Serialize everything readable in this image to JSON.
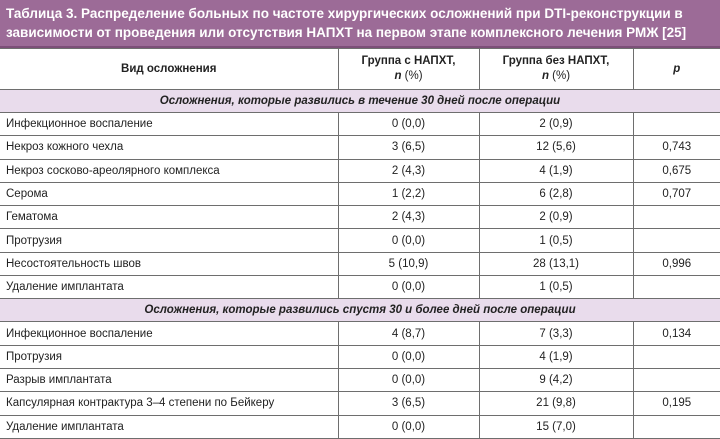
{
  "title": "Таблица 3. Распределение больных по частоте хирургических осложнений при DTI-реконструкции в зависимости от проведения или отсутствия НАПХТ на первом этапе комплексного лечения РМЖ [25]",
  "headers": {
    "type": "Вид осложнения",
    "g1": "Группа с НАПХТ,",
    "g2": "Группа без НАПХТ,",
    "n": "n",
    "pct": " (%)",
    "p": "p"
  },
  "colors": {
    "title_bg": "#9c6b97",
    "section_bg": "#e9dcec"
  },
  "sections": [
    {
      "label": "Осложнения, которые развились в течение 30 дней после операции",
      "rows": [
        [
          "Инфекционное воспаление",
          "0 (0,0)",
          "2 (0,9)",
          ""
        ],
        [
          "Некроз кожного чехла",
          "3 (6,5)",
          "12 (5,6)",
          "0,743"
        ],
        [
          "Некроз сосково-ареолярного комплекса",
          "2 (4,3)",
          "4 (1,9)",
          "0,675"
        ],
        [
          "Серома",
          "1 (2,2)",
          "6 (2,8)",
          "0,707"
        ],
        [
          "Гематома",
          "2 (4,3)",
          "2 (0,9)",
          ""
        ],
        [
          "Протрузия",
          "0 (0,0)",
          "1 (0,5)",
          ""
        ],
        [
          "Несостоятельность швов",
          "5 (10,9)",
          "28 (13,1)",
          "0,996"
        ],
        [
          "Удаление имплантата",
          "0 (0,0)",
          "1 (0,5)",
          ""
        ]
      ]
    },
    {
      "label": "Осложнения, которые развились спустя 30 и более дней после операции",
      "rows": [
        [
          "Инфекционное воспаление",
          "4 (8,7)",
          "7 (3,3)",
          "0,134"
        ],
        [
          "Протрузия",
          "0 (0,0)",
          "4 (1,9)",
          ""
        ],
        [
          "Разрыв имплантата",
          "0 (0,0)",
          "9 (4,2)",
          ""
        ],
        [
          "Капсулярная контрактура 3–4 степени по Бейкеру",
          "3 (6,5)",
          "21 (9,8)",
          "0,195"
        ],
        [
          "Удаление имплантата",
          "0 (0,0)",
          "15 (7,0)",
          ""
        ]
      ]
    }
  ]
}
